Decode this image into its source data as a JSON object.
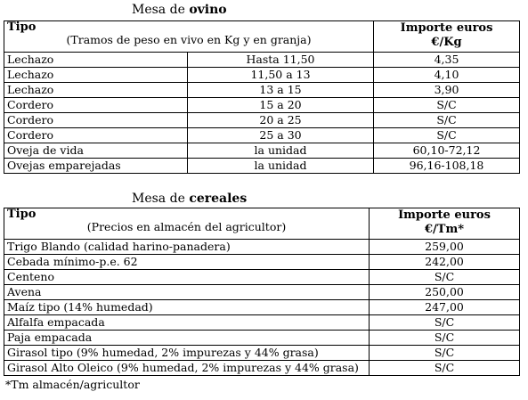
{
  "ovino": {
    "title_prefix": "Mesa de ",
    "title_bold": "ovino",
    "header": {
      "tipo": "Tipo",
      "subtitle": "(Tramos de peso en vivo en Kg y en granja)",
      "importe_line1": "Importe euros",
      "importe_line2": "€/Kg"
    },
    "rows": [
      {
        "tipo": "Lechazo",
        "rango": "Hasta 11,50",
        "importe": "4,35"
      },
      {
        "tipo": "Lechazo",
        "rango": "11,50 a 13",
        "importe": "4,10"
      },
      {
        "tipo": "Lechazo",
        "rango": "13 a 15",
        "importe": "3,90"
      },
      {
        "tipo": "Cordero",
        "rango": "15 a 20",
        "importe": "S/C"
      },
      {
        "tipo": "Cordero",
        "rango": "20 a 25",
        "importe": "S/C"
      },
      {
        "tipo": "Cordero",
        "rango": "25 a 30",
        "importe": "S/C"
      },
      {
        "tipo": "Oveja de vida",
        "rango": "la unidad",
        "importe": "60,10-72,12"
      },
      {
        "tipo": "Ovejas emparejadas",
        "rango": "la unidad",
        "importe": "96,16-108,18"
      }
    ]
  },
  "cereales": {
    "title_prefix": "Mesa de ",
    "title_bold": "cereales",
    "header": {
      "tipo": "Tipo",
      "subtitle": "(Precios en almacén del agricultor)",
      "importe_line1": "Importe euros",
      "importe_line2": "€/Tm*"
    },
    "rows": [
      {
        "tipo": "Trigo Blando (calidad harino-panadera)",
        "importe": "259,00"
      },
      {
        "tipo": "Cebada mínimo-p.e. 62",
        "importe": "242,00"
      },
      {
        "tipo": "Centeno",
        "importe": "S/C"
      },
      {
        "tipo": "Avena",
        "importe": "250,00"
      },
      {
        "tipo": "Maíz tipo (14% humedad)",
        "importe": "247,00"
      },
      {
        "tipo": "Alfalfa empacada",
        "importe": "S/C"
      },
      {
        "tipo": "Paja empacada",
        "importe": "S/C"
      },
      {
        "tipo": "Girasol tipo (9% humedad, 2% impurezas y 44% grasa)",
        "importe": "S/C"
      },
      {
        "tipo": "Girasol Alto Oleico (9% humedad, 2% impurezas y 44% grasa)",
        "importe": "S/C"
      }
    ]
  },
  "footnote": "*Tm almacén/agricultor"
}
